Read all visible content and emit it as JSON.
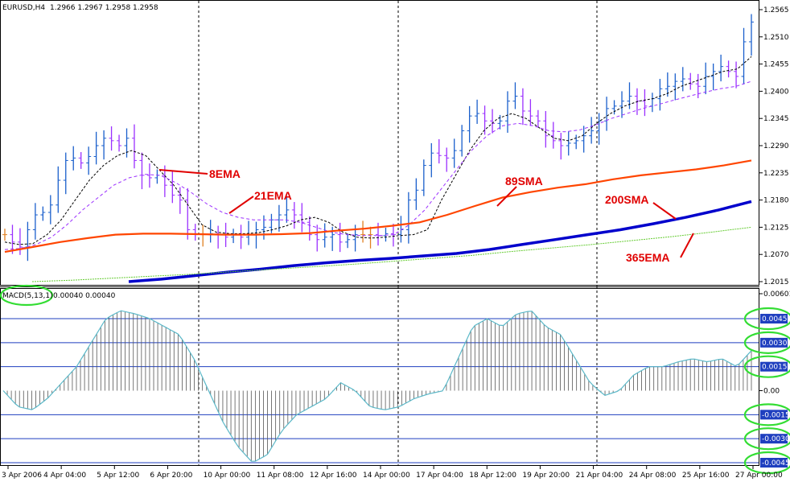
{
  "chart_data": [
    {
      "type": "line",
      "symbol": "EURUSD,H4",
      "ohlc_readout": "1.2966 1.2967 1.2958 1.2958",
      "y_ticks": [
        "1.2565",
        "1.2510",
        "1.2455",
        "1.2400",
        "1.2345",
        "1.2290",
        "1.2235",
        "1.2180",
        "1.2125",
        "1.2070",
        "1.2015"
      ],
      "ylim": [
        1.2015,
        1.2565
      ],
      "x_ticks": [
        "3 Apr 2006",
        "4 Apr 04:00",
        "5 Apr 12:00",
        "6 Apr 20:00",
        "10 Apr 00:00",
        "11 Apr 08:00",
        "12 Apr 16:00",
        "14 Apr 00:00",
        "17 Apr 04:00",
        "18 Apr 12:00",
        "19 Apr 20:00",
        "21 Apr 04:00",
        "24 Apr 08:00",
        "25 Apr 16:00",
        "27 Apr 00:00"
      ],
      "price_bars": [
        1.211,
        1.2095,
        1.2085,
        1.212,
        1.215,
        1.2155,
        1.217,
        1.222,
        1.226,
        1.2265,
        1.2255,
        1.2268,
        1.229,
        1.2305,
        1.23,
        1.229,
        1.2305,
        1.226,
        1.223,
        1.2225,
        1.223,
        1.221,
        1.219,
        1.218,
        1.212,
        1.211,
        1.211,
        1.2112,
        1.211,
        1.2105,
        1.211,
        1.2105,
        1.211,
        1.212,
        1.2125,
        1.214,
        1.215,
        1.216,
        1.215,
        1.2135,
        1.211,
        1.21,
        1.2105,
        1.211,
        1.2095,
        1.21,
        1.211,
        1.211,
        1.211,
        1.2108,
        1.2112,
        1.211,
        1.212,
        1.218,
        1.22,
        1.225,
        1.2275,
        1.227,
        1.2265,
        1.228,
        1.232,
        1.235,
        1.2355,
        1.234,
        1.2335,
        1.234,
        1.238,
        1.239,
        1.236,
        1.235,
        1.234,
        1.231,
        1.23,
        1.229,
        1.2295,
        1.23,
        1.231,
        1.232,
        1.234,
        1.2365,
        1.237,
        1.238,
        1.239,
        1.238,
        1.237,
        1.2385,
        1.2405,
        1.241,
        1.242,
        1.2425,
        1.2415,
        1.241,
        1.243,
        1.244,
        1.245,
        1.244,
        1.243,
        1.25,
        1.254
      ],
      "series": [
        {
          "name": "8EMA",
          "values": [
            1.2095,
            1.209,
            1.2092,
            1.211,
            1.214,
            1.218,
            1.222,
            1.225,
            1.227,
            1.228,
            1.227,
            1.224,
            1.221,
            1.217,
            1.213,
            1.2115,
            1.2112,
            1.2112,
            1.2114,
            1.212,
            1.2128,
            1.214,
            1.2145,
            1.2135,
            1.2115,
            1.2105,
            1.2103,
            1.2105,
            1.2108,
            1.211,
            1.212,
            1.218,
            1.223,
            1.228,
            1.232,
            1.2345,
            1.2355,
            1.2345,
            1.2325,
            1.2305,
            1.23,
            1.231,
            1.2335,
            1.2355,
            1.237,
            1.238,
            1.2385,
            1.2395,
            1.241,
            1.242,
            1.243,
            1.244,
            1.2445,
            1.247
          ]
        },
        {
          "name": "21EMA",
          "values": [
            1.208,
            1.2082,
            1.209,
            1.2105,
            1.213,
            1.216,
            1.2185,
            1.221,
            1.2225,
            1.2232,
            1.223,
            1.2215,
            1.2195,
            1.2172,
            1.2155,
            1.2145,
            1.214,
            1.214,
            1.214,
            1.2135,
            1.2125,
            1.2115,
            1.211,
            1.2108,
            1.2108,
            1.211,
            1.213,
            1.216,
            1.22,
            1.224,
            1.228,
            1.231,
            1.233,
            1.2335,
            1.233,
            1.232,
            1.2318,
            1.2322,
            1.2332,
            1.2345,
            1.2355,
            1.2365,
            1.2373,
            1.2382,
            1.239,
            1.2398,
            1.2405,
            1.241,
            1.242
          ]
        },
        {
          "name": "89SMA",
          "values": [
            1.2075,
            1.2085,
            1.2095,
            1.2103,
            1.211,
            1.2112,
            1.2112,
            1.2111,
            1.211,
            1.211,
            1.2111,
            1.2113,
            1.2118,
            1.2122,
            1.2128,
            1.2135,
            1.215,
            1.2168,
            1.2185,
            1.2196,
            1.2205,
            1.2212,
            1.2222,
            1.223,
            1.2236,
            1.2242,
            1.225,
            1.226
          ]
        },
        {
          "name": "200SMA",
          "values": [
            1.2015,
            1.202,
            1.2027,
            1.2034,
            1.204,
            1.2047,
            1.2053,
            1.2058,
            1.2062,
            1.2067,
            1.2072,
            1.208,
            1.209,
            1.21,
            1.211,
            1.212,
            1.2132,
            1.2145,
            1.216,
            1.2177
          ]
        },
        {
          "name": "365EMA",
          "values": [
            1.2015,
            1.2018,
            1.2022,
            1.2026,
            1.203,
            1.2035,
            1.204,
            1.2045,
            1.205,
            1.2056,
            1.2062,
            1.2068,
            1.2076,
            1.2083,
            1.209,
            1.2098,
            1.2106,
            1.2115,
            1.2125
          ]
        }
      ],
      "annotations": [
        "8EMA",
        "21EMA",
        "89SMA",
        "200SMA",
        "365EMA"
      ],
      "colors": {
        "bullish_bar": "#1a5fcc",
        "bearish_bar": "#9b30ff",
        "doji_bar": "#e08020",
        "ema8": "#000000",
        "ema21": "#9b30ff",
        "sma89": "#ff4500",
        "sma200": "#0000cc",
        "ema365": "#66cc33",
        "annotation": "#e00000"
      }
    },
    {
      "type": "bar",
      "title": "MACD(5,13,1)",
      "readout": "0.00040 0.00040",
      "y_ticks": [
        "0.00601",
        "0.0045",
        "0.0030",
        "0.0015",
        "0.00",
        "-0.0015",
        "-0.0030",
        "-0.0045"
      ],
      "levels": [
        0.0045,
        0.003,
        0.0015,
        -0.0015,
        -0.003,
        -0.0045
      ],
      "ylim": [
        -0.0045,
        0.00601
      ],
      "values": [
        0.0,
        -0.001,
        -0.0012,
        -0.0005,
        0.0005,
        0.0015,
        0.003,
        0.0045,
        0.005,
        0.0048,
        0.0045,
        0.004,
        0.0035,
        0.002,
        0.0,
        -0.002,
        -0.0035,
        -0.0045,
        -0.004,
        -0.0025,
        -0.0015,
        -0.001,
        -0.0005,
        0.0005,
        0.0,
        -0.001,
        -0.0012,
        -0.001,
        -0.0005,
        -0.0002,
        0.0,
        0.002,
        0.004,
        0.0045,
        0.004,
        0.0048,
        0.005,
        0.004,
        0.0035,
        0.002,
        0.0005,
        -0.0003,
        0.0,
        0.001,
        0.0015,
        0.0015,
        0.0018,
        0.002,
        0.0018,
        0.002,
        0.0015,
        0.0025
      ],
      "colors": {
        "line": "#5bb8c8",
        "bars": "#555555",
        "levels": "#1f3fbf",
        "highlight": "#33dd33",
        "box": "#1f3fbf"
      }
    }
  ]
}
